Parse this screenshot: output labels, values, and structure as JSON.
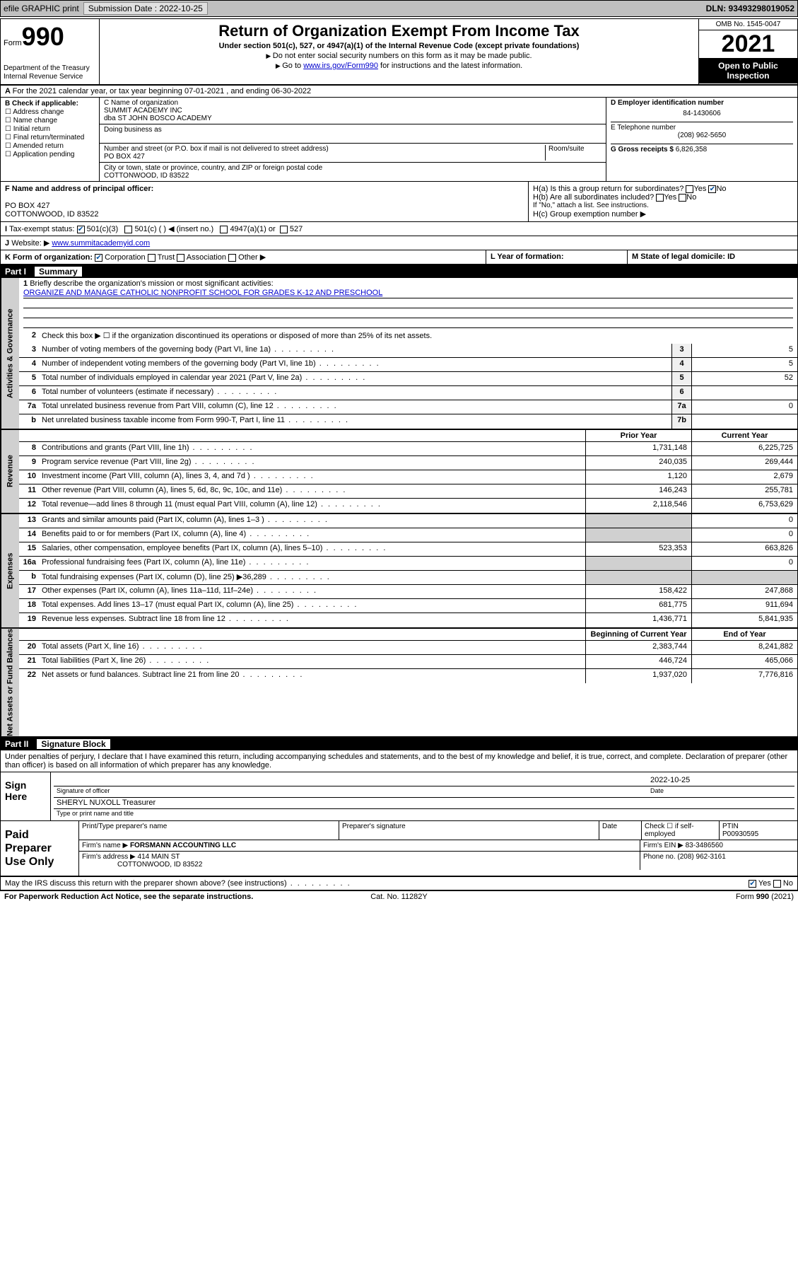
{
  "topbar": {
    "efile": "efile GRAPHIC print",
    "subm_lbl": "Submission Date : 2022-10-25",
    "dln": "DLN: 93493298019052"
  },
  "header": {
    "form_word": "Form",
    "form_num": "990",
    "dept": "Department of the Treasury\nInternal Revenue Service",
    "title": "Return of Organization Exempt From Income Tax",
    "sub": "Under section 501(c), 527, or 4947(a)(1) of the Internal Revenue Code (except private foundations)",
    "note1": "Do not enter social security numbers on this form as it may be made public.",
    "note2_pre": "Go to ",
    "note2_link": "www.irs.gov/Form990",
    "note2_post": " for instructions and the latest information.",
    "omb": "OMB No. 1545-0047",
    "year": "2021",
    "public": "Open to Public Inspection"
  },
  "rowA": {
    "text": "For the 2021 calendar year, or tax year beginning 07-01-2021   , and ending 06-30-2022"
  },
  "colB": {
    "hdr": "B Check if applicable:",
    "opts": [
      "Address change",
      "Name change",
      "Initial return",
      "Final return/terminated",
      "Amended return",
      "Application pending"
    ]
  },
  "colC": {
    "name_lbl": "C Name of organization",
    "name1": "SUMMIT ACADEMY INC",
    "name2": "dba ST JOHN BOSCO ACADEMY",
    "dba_lbl": "Doing business as",
    "addr_lbl": "Number and street (or P.O. box if mail is not delivered to street address)",
    "room_lbl": "Room/suite",
    "addr": "PO BOX 427",
    "city_lbl": "City or town, state or province, country, and ZIP or foreign postal code",
    "city": "COTTONWOOD, ID  83522"
  },
  "colD": {
    "ein_lbl": "D Employer identification number",
    "ein": "84-1430606",
    "phone_lbl": "E Telephone number",
    "phone": "(208) 962-5650",
    "gross_lbl": "G Gross receipts $",
    "gross": "6,826,358"
  },
  "rowF": {
    "lbl": "F Name and address of principal officer:",
    "addr1": "PO BOX 427",
    "addr2": "COTTONWOOD, ID  83522"
  },
  "rowH": {
    "ha": "H(a)  Is this a group return for subordinates?",
    "hb": "H(b)  Are all subordinates included?",
    "hb_note": "If \"No,\" attach a list. See instructions.",
    "hc": "H(c)  Group exemption number ▶"
  },
  "rowI": {
    "lbl": "Tax-exempt status:",
    "o1": "501(c)(3)",
    "o2": "501(c) (  ) ◀ (insert no.)",
    "o3": "4947(a)(1) or",
    "o4": "527"
  },
  "rowJ": {
    "lbl": "Website: ▶",
    "val": "www.summitacademyid.com"
  },
  "rowK": {
    "lbl": "K Form of organization:",
    "opts": [
      "Corporation",
      "Trust",
      "Association",
      "Other ▶"
    ]
  },
  "rowL": {
    "lbl": "L Year of formation:"
  },
  "rowM": {
    "lbl": "M State of legal domicile: ID"
  },
  "part1": {
    "num": "Part I",
    "title": "Summary"
  },
  "summary": {
    "q1": "Briefly describe the organization's mission or most significant activities:",
    "mission": "ORGANIZE AND MANAGE CATHOLIC NONPROFIT SCHOOL FOR GRADES K-12 AND PRESCHOOL",
    "q2": "Check this box ▶ ☐  if the organization discontinued its operations or disposed of more than 25% of its net assets.",
    "lines_gov": [
      {
        "n": "3",
        "d": "Number of voting members of the governing body (Part VI, line 1a)",
        "b": "3",
        "v": "5"
      },
      {
        "n": "4",
        "d": "Number of independent voting members of the governing body (Part VI, line 1b)",
        "b": "4",
        "v": "5"
      },
      {
        "n": "5",
        "d": "Total number of individuals employed in calendar year 2021 (Part V, line 2a)",
        "b": "5",
        "v": "52"
      },
      {
        "n": "6",
        "d": "Total number of volunteers (estimate if necessary)",
        "b": "6",
        "v": ""
      },
      {
        "n": "7a",
        "d": "Total unrelated business revenue from Part VIII, column (C), line 12",
        "b": "7a",
        "v": "0"
      },
      {
        "n": "b",
        "d": "Net unrelated business taxable income from Form 990-T, Part I, line 11",
        "b": "7b",
        "v": ""
      }
    ],
    "col_prior": "Prior Year",
    "col_curr": "Current Year",
    "lines_rev": [
      {
        "n": "8",
        "d": "Contributions and grants (Part VIII, line 1h)",
        "p": "1,731,148",
        "c": "6,225,725"
      },
      {
        "n": "9",
        "d": "Program service revenue (Part VIII, line 2g)",
        "p": "240,035",
        "c": "269,444"
      },
      {
        "n": "10",
        "d": "Investment income (Part VIII, column (A), lines 3, 4, and 7d )",
        "p": "1,120",
        "c": "2,679"
      },
      {
        "n": "11",
        "d": "Other revenue (Part VIII, column (A), lines 5, 6d, 8c, 9c, 10c, and 11e)",
        "p": "146,243",
        "c": "255,781"
      },
      {
        "n": "12",
        "d": "Total revenue—add lines 8 through 11 (must equal Part VIII, column (A), line 12)",
        "p": "2,118,546",
        "c": "6,753,629"
      }
    ],
    "lines_exp": [
      {
        "n": "13",
        "d": "Grants and similar amounts paid (Part IX, column (A), lines 1–3 )",
        "p": "",
        "c": "0"
      },
      {
        "n": "14",
        "d": "Benefits paid to or for members (Part IX, column (A), line 4)",
        "p": "",
        "c": "0"
      },
      {
        "n": "15",
        "d": "Salaries, other compensation, employee benefits (Part IX, column (A), lines 5–10)",
        "p": "523,353",
        "c": "663,826"
      },
      {
        "n": "16a",
        "d": "Professional fundraising fees (Part IX, column (A), line 11e)",
        "p": "",
        "c": "0"
      },
      {
        "n": "b",
        "d": "Total fundraising expenses (Part IX, column (D), line 25) ▶36,289",
        "p": "",
        "c": ""
      },
      {
        "n": "17",
        "d": "Other expenses (Part IX, column (A), lines 11a–11d, 11f–24e)",
        "p": "158,422",
        "c": "247,868"
      },
      {
        "n": "18",
        "d": "Total expenses. Add lines 13–17 (must equal Part IX, column (A), line 25)",
        "p": "681,775",
        "c": "911,694"
      },
      {
        "n": "19",
        "d": "Revenue less expenses. Subtract line 18 from line 12",
        "p": "1,436,771",
        "c": "5,841,935"
      }
    ],
    "col_beg": "Beginning of Current Year",
    "col_end": "End of Year",
    "lines_net": [
      {
        "n": "20",
        "d": "Total assets (Part X, line 16)",
        "p": "2,383,744",
        "c": "8,241,882"
      },
      {
        "n": "21",
        "d": "Total liabilities (Part X, line 26)",
        "p": "446,724",
        "c": "465,066"
      },
      {
        "n": "22",
        "d": "Net assets or fund balances. Subtract line 21 from line 20",
        "p": "1,937,020",
        "c": "7,776,816"
      }
    ]
  },
  "vtabs": {
    "gov": "Activities & Governance",
    "rev": "Revenue",
    "exp": "Expenses",
    "net": "Net Assets or Fund Balances"
  },
  "part2": {
    "num": "Part II",
    "title": "Signature Block"
  },
  "sig": {
    "decl": "Under penalties of perjury, I declare that I have examined this return, including accompanying schedules and statements, and to the best of my knowledge and belief, it is true, correct, and complete. Declaration of preparer (other than officer) is based on all information of which preparer has any knowledge.",
    "sign_here": "Sign Here",
    "sig_officer": "Signature of officer",
    "date_lbl": "Date",
    "date": "2022-10-25",
    "name_title": "SHERYL NUXOLL Treasurer",
    "name_lbl": "Type or print name and title"
  },
  "paid": {
    "lbl": "Paid Preparer Use Only",
    "h1": "Print/Type preparer's name",
    "h2": "Preparer's signature",
    "h3": "Date",
    "h4_pre": "Check ☐ if self-employed",
    "h5": "PTIN",
    "ptin": "P00930595",
    "firm_lbl": "Firm's name    ▶",
    "firm": "FORSMANN ACCOUNTING LLC",
    "ein_lbl": "Firm's EIN ▶",
    "ein": "83-3486560",
    "addr_lbl": "Firm's address ▶",
    "addr1": "414 MAIN ST",
    "addr2": "COTTONWOOD, ID  83522",
    "phone_lbl": "Phone no.",
    "phone": "(208) 962-3161"
  },
  "footer": {
    "may": "May the IRS discuss this return with the preparer shown above? (see instructions)",
    "pra": "For Paperwork Reduction Act Notice, see the separate instructions.",
    "cat": "Cat. No. 11282Y",
    "form": "Form 990 (2021)"
  }
}
